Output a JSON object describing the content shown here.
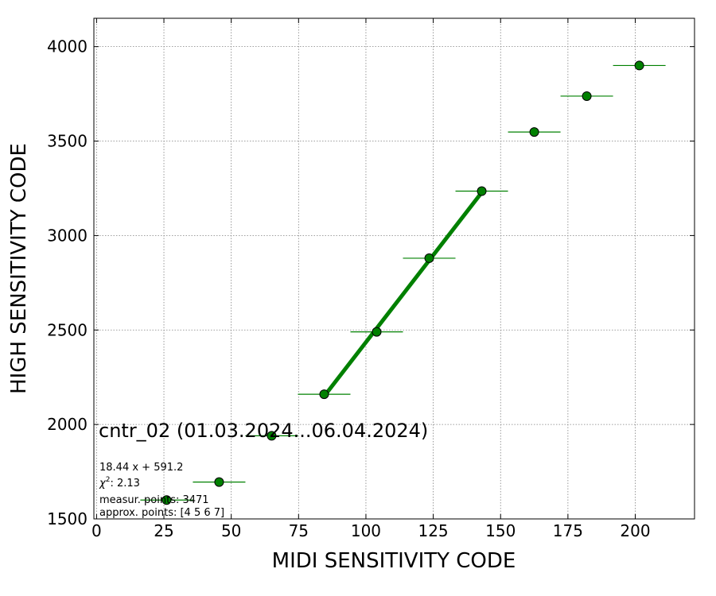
{
  "chart_data": {
    "type": "scatter",
    "title": "cntr_02 (01.03.2024...06.04.2024)",
    "xlabel": "MIDI SENSITIVITY CODE",
    "ylabel": "HIGH SENSITIVITY CODE",
    "xlim": [
      -1,
      222
    ],
    "ylim": [
      1500,
      4150
    ],
    "xticks": [
      0,
      25,
      50,
      75,
      100,
      125,
      150,
      175,
      200
    ],
    "yticks": [
      1500,
      2000,
      2500,
      3000,
      3500,
      4000
    ],
    "grid": true,
    "series": [
      {
        "x": [
          26,
          45.5,
          65,
          84.5,
          104,
          123.5,
          143,
          162.5,
          182,
          201.5
        ],
        "y": [
          1600,
          1695,
          1940,
          2160,
          2490,
          2880,
          3235,
          3548,
          3738,
          3900
        ],
        "xerr": 9.75,
        "marker_color": "#008000",
        "errorbar_color": "#008000"
      }
    ],
    "fit": {
      "slope": 18.44,
      "intercept": 591.2,
      "x_range": [
        84.5,
        143
      ],
      "color": "#008000"
    },
    "annotations": {
      "fit_equation": "18.44 x + 591.2",
      "chi2_value": ": 2.13",
      "measur_points": "measur. points: 3471",
      "approx_points": "approx. points: [4 5 6 7]"
    }
  }
}
